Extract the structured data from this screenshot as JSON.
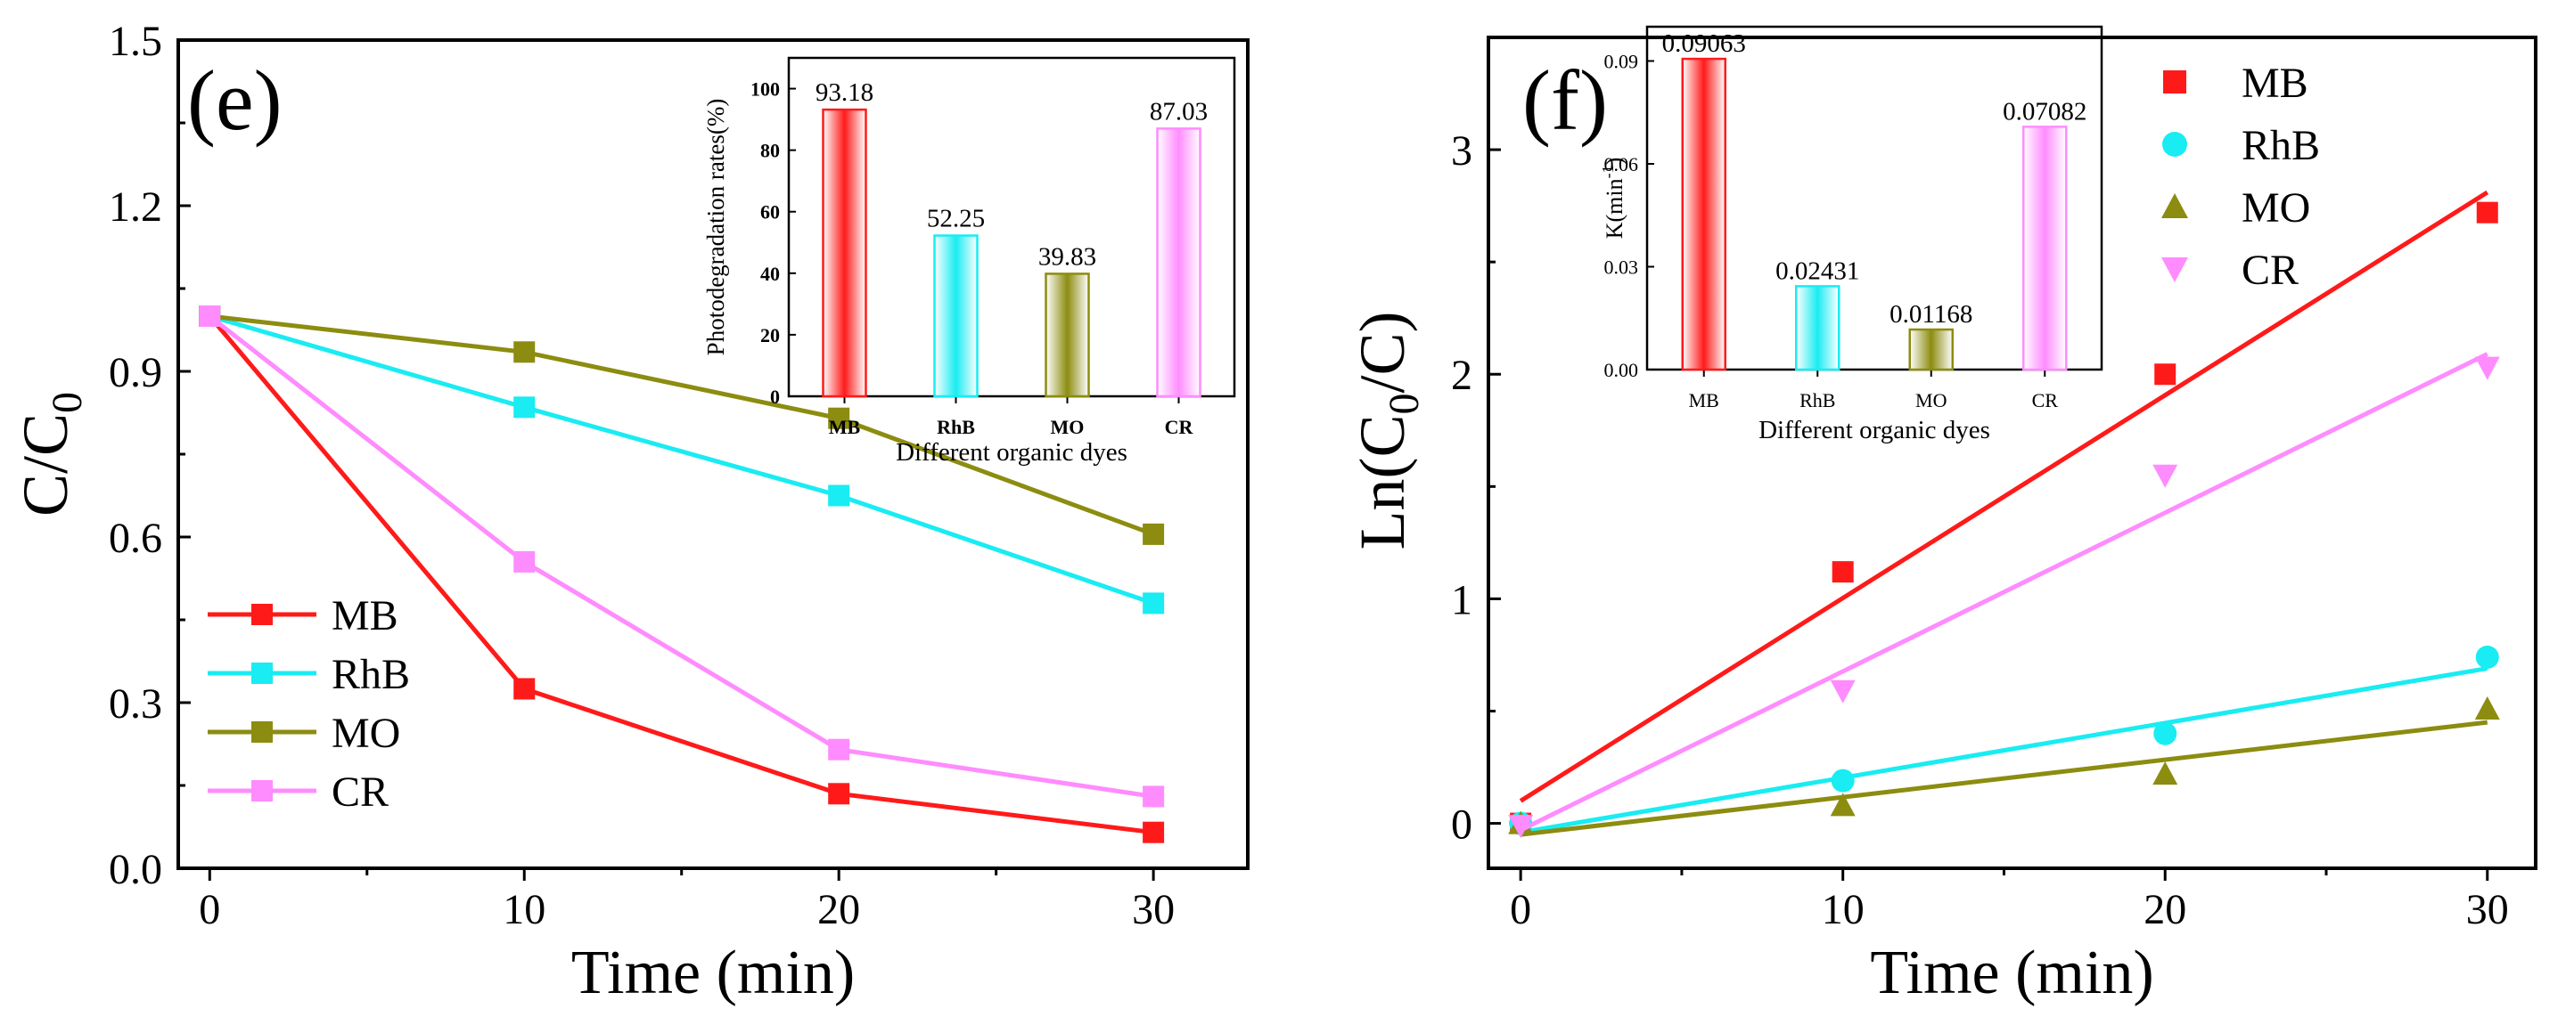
{
  "colors": {
    "MB": "#ff1a1a",
    "RhB": "#19ecf2",
    "MO": "#8c8c10",
    "CR": "#ff8cff",
    "axis": "#000000"
  },
  "chart_data": [
    {
      "panel": "(e)",
      "type": "line",
      "xlabel": "Time (min)",
      "ylabel_main": "C/C",
      "ylabel_sub": "0",
      "x": [
        0,
        10,
        20,
        30
      ],
      "xlim": [
        -1,
        33
      ],
      "ylim": [
        0,
        1.5
      ],
      "xticks": [
        "0",
        "10",
        "20",
        "30"
      ],
      "yticks": [
        "0.0",
        "0.3",
        "0.6",
        "0.9",
        "1.2",
        "1.5"
      ],
      "legend_position": "lower-left",
      "series": [
        {
          "name": "MB",
          "marker": "square",
          "values": [
            1.0,
            0.325,
            0.135,
            0.065
          ]
        },
        {
          "name": "RhB",
          "marker": "square",
          "values": [
            1.0,
            0.835,
            0.675,
            0.48
          ]
        },
        {
          "name": "MO",
          "marker": "square",
          "values": [
            1.0,
            0.935,
            0.815,
            0.605
          ]
        },
        {
          "name": "CR",
          "marker": "square",
          "values": [
            1.0,
            0.555,
            0.215,
            0.13
          ]
        }
      ],
      "inset": {
        "type": "bar",
        "ylabel": "Photodegradation rates(%)",
        "xlabel": "Different  organic dyes",
        "categories": [
          "MB",
          "RhB",
          "MO",
          "CR"
        ],
        "values": [
          93.18,
          52.25,
          39.83,
          87.03
        ],
        "data_labels": [
          "93.18",
          "52.25",
          "39.83",
          "87.03"
        ],
        "ylim": [
          0,
          110
        ],
        "yticks": [
          "0",
          "20",
          "40",
          "60",
          "80",
          "100"
        ]
      }
    },
    {
      "panel": "(f)",
      "type": "scatter",
      "xlabel": "Time (min)",
      "ylabel_prefix": "Ln(C",
      "ylabel_sub": "0",
      "ylabel_suffix": "/C)",
      "x": [
        0,
        10,
        20,
        30
      ],
      "xlim": [
        -1,
        31.5
      ],
      "ylim": [
        -0.2,
        3.5
      ],
      "xticks": [
        "0",
        "10",
        "20",
        "30"
      ],
      "yticks": [
        "0",
        "1",
        "2",
        "3"
      ],
      "legend_position": "top-right",
      "series": [
        {
          "name": "MB",
          "marker": "square",
          "values": [
            0.0,
            1.12,
            2.0,
            2.72
          ],
          "fit": [
            0.1,
            2.81
          ]
        },
        {
          "name": "RhB",
          "marker": "circle",
          "values": [
            0.0,
            0.19,
            0.4,
            0.74
          ],
          "fit": [
            -0.04,
            0.69
          ]
        },
        {
          "name": "MO",
          "marker": "triangle",
          "values": [
            0.0,
            0.08,
            0.22,
            0.51
          ],
          "fit": [
            -0.05,
            0.45
          ]
        },
        {
          "name": "CR",
          "marker": "triangle-down",
          "values": [
            -0.01,
            0.59,
            1.55,
            2.03
          ],
          "fit": [
            -0.03,
            2.09
          ]
        }
      ],
      "inset": {
        "type": "bar",
        "ylabel": "K(min",
        "ylabel_sup": "-1",
        "ylabel_close": ")",
        "xlabel": "Different  organic dyes",
        "categories": [
          "MB",
          "RhB",
          "MO",
          "CR"
        ],
        "values": [
          0.09063,
          0.02431,
          0.01168,
          0.07082
        ],
        "data_labels": [
          "0.09063",
          "0.02431",
          "0.01168",
          "0.07082"
        ],
        "ylim": [
          0,
          0.1
        ],
        "yticks": [
          "0.00",
          "0.03",
          "0.06",
          "0.09"
        ]
      }
    }
  ]
}
